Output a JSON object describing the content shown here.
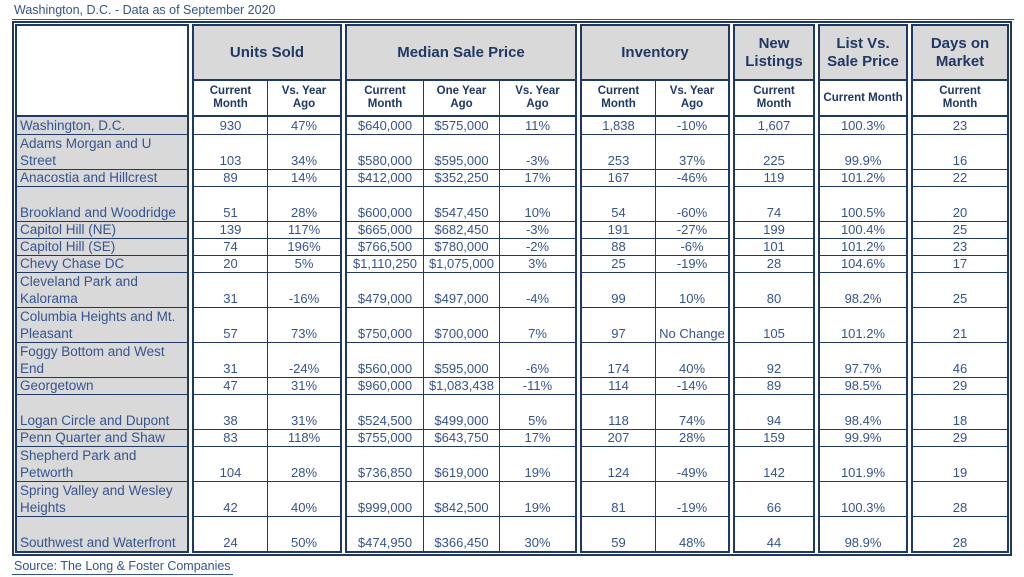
{
  "title": "Washington, D.C. - Data as of September 2020",
  "source": "Source: The Long & Foster Companies",
  "colors": {
    "border_navy": "#1F3864",
    "text_navy": "#35548F",
    "header_gray": "#D9D9D9",
    "background": "#FFFFFF"
  },
  "table": {
    "groups": [
      {
        "label": "Units Sold",
        "subcols": [
          "Current Month",
          "Vs. Year Ago"
        ]
      },
      {
        "label": "Median Sale Price",
        "subcols": [
          "Current Month",
          "One Year Ago",
          "Vs. Year Ago"
        ]
      },
      {
        "label": "Inventory",
        "subcols": [
          "Current Month",
          "Vs. Year Ago"
        ]
      },
      {
        "label": "New Listings",
        "subcols": [
          "Current Month"
        ]
      },
      {
        "label": "List Vs. Sale Price",
        "subcols": [
          "Current Month"
        ]
      },
      {
        "label": "Days on Market",
        "subcols": [
          "Current Month"
        ]
      }
    ],
    "rows": [
      {
        "area": "Washington, D.C.",
        "tall": false,
        "values": [
          "930",
          "47%",
          "$640,000",
          "$575,000",
          "11%",
          "1,838",
          "-10%",
          "1,607",
          "100.3%",
          "23"
        ]
      },
      {
        "area": "Adams Morgan and U Street",
        "tall": true,
        "values": [
          "103",
          "34%",
          "$580,000",
          "$595,000",
          "-3%",
          "253",
          "37%",
          "225",
          "99.9%",
          "16"
        ]
      },
      {
        "area": "Anacostia and Hillcrest",
        "tall": false,
        "values": [
          "89",
          "14%",
          "$412,000",
          "$352,250",
          "17%",
          "167",
          "-46%",
          "119",
          "101.2%",
          "22"
        ]
      },
      {
        "area": "Brookland and Woodridge",
        "tall": true,
        "values": [
          "51",
          "28%",
          "$600,000",
          "$547,450",
          "10%",
          "54",
          "-60%",
          "74",
          "100.5%",
          "20"
        ]
      },
      {
        "area": "Capitol Hill (NE)",
        "tall": false,
        "values": [
          "139",
          "117%",
          "$665,000",
          "$682,450",
          "-3%",
          "191",
          "-27%",
          "199",
          "100.4%",
          "25"
        ]
      },
      {
        "area": "Capitol Hill (SE)",
        "tall": false,
        "values": [
          "74",
          "196%",
          "$766,500",
          "$780,000",
          "-2%",
          "88",
          "-6%",
          "101",
          "101.2%",
          "23"
        ]
      },
      {
        "area": "Chevy Chase DC",
        "tall": false,
        "values": [
          "20",
          "5%",
          "$1,110,250",
          "$1,075,000",
          "3%",
          "25",
          "-19%",
          "28",
          "104.6%",
          "17"
        ]
      },
      {
        "area": "Cleveland Park and Kalorama",
        "tall": true,
        "values": [
          "31",
          "-16%",
          "$479,000",
          "$497,000",
          "-4%",
          "99",
          "10%",
          "80",
          "98.2%",
          "25"
        ]
      },
      {
        "area": "Columbia Heights and Mt. Pleasant",
        "tall": true,
        "values": [
          "57",
          "73%",
          "$750,000",
          "$700,000",
          "7%",
          "97",
          "No Change",
          "105",
          "101.2%",
          "21"
        ]
      },
      {
        "area": "Foggy Bottom and West End",
        "tall": true,
        "values": [
          "31",
          "-24%",
          "$560,000",
          "$595,000",
          "-6%",
          "174",
          "40%",
          "92",
          "97.7%",
          "46"
        ]
      },
      {
        "area": "Georgetown",
        "tall": false,
        "values": [
          "47",
          "31%",
          "$960,000",
          "$1,083,438",
          "-11%",
          "114",
          "-14%",
          "89",
          "98.5%",
          "29"
        ]
      },
      {
        "area": "Logan Circle and Dupont",
        "tall": true,
        "values": [
          "38",
          "31%",
          "$524,500",
          "$499,000",
          "5%",
          "118",
          "74%",
          "94",
          "98.4%",
          "18"
        ]
      },
      {
        "area": "Penn Quarter and Shaw",
        "tall": false,
        "values": [
          "83",
          "118%",
          "$755,000",
          "$643,750",
          "17%",
          "207",
          "28%",
          "159",
          "99.9%",
          "29"
        ]
      },
      {
        "area": "Shepherd Park and Petworth",
        "tall": true,
        "values": [
          "104",
          "28%",
          "$736,850",
          "$619,000",
          "19%",
          "124",
          "-49%",
          "142",
          "101.9%",
          "19"
        ]
      },
      {
        "area": "Spring Valley and Wesley Heights",
        "tall": true,
        "values": [
          "42",
          "40%",
          "$999,000",
          "$842,500",
          "19%",
          "81",
          "-19%",
          "66",
          "100.3%",
          "28"
        ]
      },
      {
        "area": "Southwest and Waterfront",
        "tall": true,
        "values": [
          "24",
          "50%",
          "$474,950",
          "$366,450",
          "30%",
          "59",
          "48%",
          "44",
          "98.9%",
          "28"
        ]
      }
    ]
  }
}
